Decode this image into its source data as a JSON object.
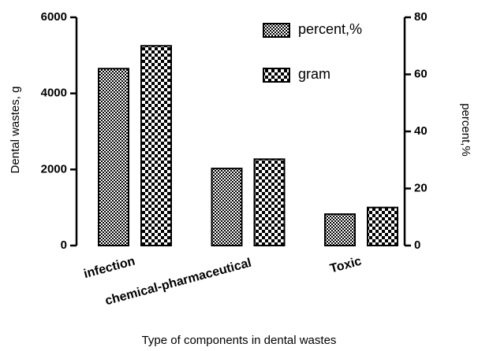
{
  "chart_data": {
    "type": "bar",
    "categories": [
      "infection",
      "chemical-pharmaceutical",
      "Toxic"
    ],
    "series": [
      {
        "name": "percent,%",
        "color": "#000000",
        "axis": "y2",
        "values": [
          62,
          27,
          11
        ]
      },
      {
        "name": "gram",
        "color": "#000000",
        "values": [
          5250,
          2270,
          1000
        ]
      }
    ],
    "xlabel": "Type of components in dental wastes",
    "ylabel": "Dental wastes, g",
    "y2label": "percent,%",
    "ylim": [
      0,
      6000
    ],
    "yticks": [
      0,
      2000,
      4000,
      6000
    ],
    "y2lim": [
      0,
      80
    ],
    "y2ticks": [
      0,
      20,
      40,
      60,
      80
    ],
    "legend": "upper right",
    "grid": false
  }
}
